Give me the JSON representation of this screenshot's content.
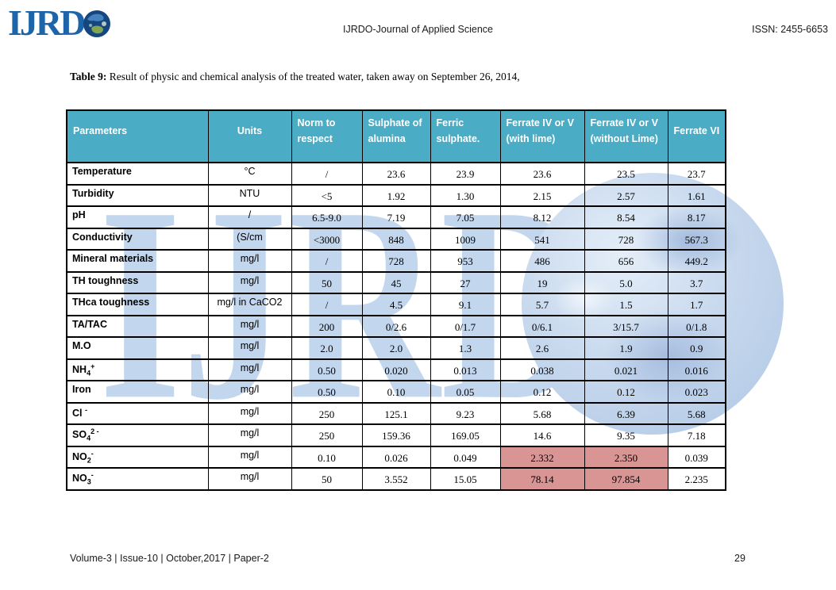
{
  "page": {
    "header": {
      "logo_text": "IJRD",
      "journal": "IJRDO-Journal of Applied Science",
      "issn": "ISSN: 2455-6653"
    },
    "title": {
      "label": "Table 9:",
      "text": " Result of physic and chemical analysis of the treated water, taken away on September 26, 2014,"
    },
    "watermark": {
      "text": "IJRD"
    },
    "footer": {
      "citation": "Volume-3 | Issue-10 | October,2017 | Paper-2",
      "page_number": "29"
    }
  },
  "table": {
    "columns": [
      "Parameters",
      "Units",
      "Norm to respect",
      "Sulphate of alumina",
      "Ferric sulphate.",
      "Ferrate IV or V (with lime)",
      "Ferrate IV or V (without Lime)",
      "Ferrate VI"
    ],
    "colors": {
      "header_bg": "#4BACC6",
      "header_text": "#FFFFFF",
      "highlight_bg": "#D99594",
      "border": "#000000"
    },
    "rows": [
      {
        "parameter": "Temperature",
        "units": "°C",
        "values": [
          "/",
          "23.6",
          "23.9",
          "23.6",
          "23.5",
          "23.7"
        ]
      },
      {
        "parameter": "Turbidity",
        "units": "NTU",
        "values": [
          "<5",
          "1.92",
          "1.30",
          "2.15",
          "2.57",
          "1.61"
        ]
      },
      {
        "parameter": "pH",
        "units": "/",
        "values": [
          "6.5-9.0",
          "7.19",
          "7.05",
          "8.12",
          "8.54",
          "8.17"
        ]
      },
      {
        "parameter": "Conductivity",
        "units": "(S/cm",
        "values": [
          "<3000",
          "848",
          "1009",
          "541",
          "728",
          "567.3"
        ]
      },
      {
        "parameter": "Mineral materials",
        "units": "mg/l",
        "values": [
          "/",
          "728",
          "953",
          "486",
          "656",
          "449.2"
        ]
      },
      {
        "parameter": "TH toughness",
        "units": "mg/l",
        "values": [
          "50",
          "45",
          "27",
          "19",
          "5.0",
          "3.7"
        ]
      },
      {
        "parameter": "THca toughness",
        "units": "mg/l in CaCO2",
        "values": [
          "/",
          "4.5",
          "9.1",
          "5.7",
          "1.5",
          "1.7"
        ]
      },
      {
        "parameter": "TA/TAC",
        "units": "mg/l",
        "values": [
          "200",
          "0/2.6",
          "0/1.7",
          "0/6.1",
          "3/15.7",
          "0/1.8"
        ]
      },
      {
        "parameter": "M.O",
        "units": "mg/l",
        "values": [
          "2.0",
          "2.0",
          "1.3",
          "2.6",
          "1.9",
          "0.9"
        ]
      },
      {
        "parameter": {
          "base": "NH",
          "sub": "4",
          "sup": "+"
        },
        "units": "mg/l",
        "values": [
          "0.50",
          "0.020",
          "0.013",
          "0.038",
          "0.021",
          "0.016"
        ]
      },
      {
        "parameter": "Iron",
        "units": "mg/l",
        "values": [
          "0.50",
          "0.10",
          "0.05",
          "0.12",
          "0.12",
          "0.023"
        ]
      },
      {
        "parameter": {
          "base": "Cl ",
          "sup": "-"
        },
        "units": "mg/l",
        "values": [
          "250",
          "125.1",
          "9.23",
          "5.68",
          "6.39",
          "5.68"
        ]
      },
      {
        "parameter": {
          "base": "SO",
          "sub": "4",
          "sup": "2 -"
        },
        "units": "mg/l",
        "values": [
          "250",
          "159.36",
          "169.05",
          "14.6",
          "9.35",
          "7.18"
        ]
      },
      {
        "parameter": {
          "base": "NO",
          "sub": "2",
          "sup": "-"
        },
        "units": "mg/l",
        "values": [
          "0.10",
          "0.026",
          "0.049",
          "2.332",
          "2.350",
          "0.039"
        ],
        "highlight": [
          3,
          4
        ]
      },
      {
        "parameter": {
          "base": "NO",
          "sub": "3",
          "sup": "-"
        },
        "units": "mg/l",
        "values": [
          "50",
          "3.552",
          "15.05",
          "78.14",
          "97.854",
          "2.235"
        ],
        "highlight": [
          3,
          4
        ]
      }
    ]
  }
}
